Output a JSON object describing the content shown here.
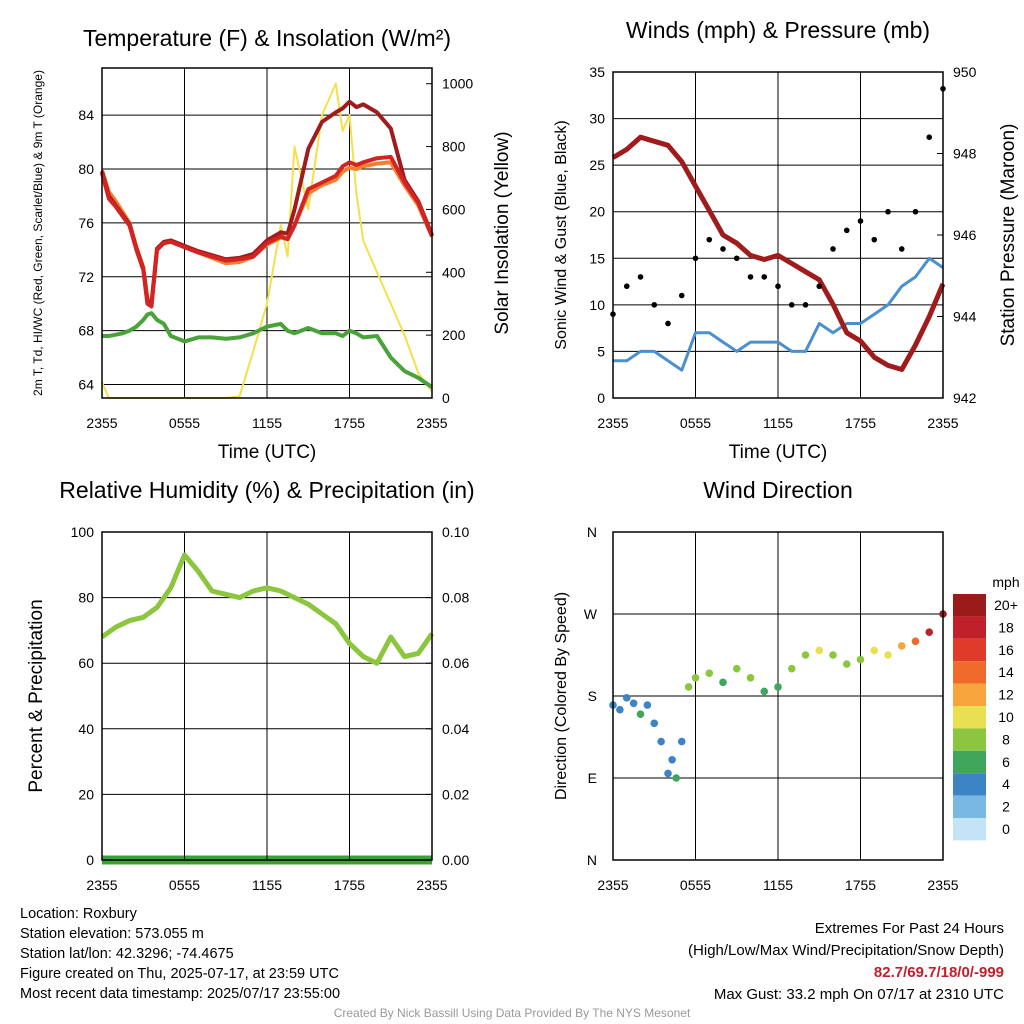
{
  "footer": {
    "location": "Location: Roxbury",
    "elevation": "Station elevation: 573.055 m",
    "latlon": "Station lat/lon: 42.3296; -74.4675",
    "created": "Figure created on Thu, 2025-07-17, at 23:59 UTC",
    "recent": "Most recent data timestamp: 2025/07/17 23:55:00",
    "extremes_title": "Extremes For Past 24 Hours",
    "extremes_sub": "(High/Low/Max Wind/Precipitation/Snow Depth)",
    "extremes_values": "82.7/69.7/18/0/-999",
    "max_gust": "Max Gust: 33.2 mph On 07/17 at 2310 UTC",
    "credit": "Created By Nick Bassill Using Data Provided By The NYS Mesonet"
  },
  "colors": {
    "temp": "#d42323",
    "heat_index": "#d73027",
    "dewpoint": "#4aa23a",
    "temp9m": "#f08030",
    "solar": "#f5e04a",
    "pressure": "#a01c1c",
    "wind": "#4a90d0",
    "gust": "#000000",
    "rh": "#8cc63f",
    "precip": "#3aa03a"
  },
  "chart_data": [
    {
      "type": "line",
      "title": "Temperature (F) & Insolation (W/m²)",
      "xlabel": "Time (UTC)",
      "ylabel": "2m T, Td, HI/WC (Red, Green, Scarlet/Blue) & 9m T (Orange)",
      "ylabel_right": "Solar Insolation (Yellow)",
      "x_ticks": [
        "2355",
        "0555",
        "1155",
        "1755",
        "2355"
      ],
      "ylim": [
        63,
        87.5
      ],
      "y_ticks": [
        "64",
        "68",
        "72",
        "76",
        "80",
        "84"
      ],
      "ylim_right": [
        0,
        1050
      ],
      "y_ticks_right": [
        "0",
        "200",
        "400",
        "600",
        "800",
        "1000"
      ],
      "x_hours": [
        0,
        0.5,
        1,
        1.5,
        2,
        2.5,
        3,
        3.3,
        3.6,
        4,
        4.5,
        5,
        6,
        7,
        8,
        9,
        10,
        11,
        12,
        13,
        13.5,
        14,
        15,
        16,
        17,
        17.5,
        18,
        18.5,
        19,
        20,
        21,
        22,
        23,
        24
      ],
      "series": [
        {
          "values": [
            79.7,
            77.8,
            77.2,
            76.5,
            75.8,
            74.0,
            72.5,
            70.0,
            69.8,
            74.0,
            74.5,
            74.6,
            74.2,
            73.8,
            73.5,
            73.2,
            73.3,
            73.5,
            74.5,
            75.0,
            74.8,
            75.8,
            78.5,
            79.0,
            79.5,
            80.2,
            80.5,
            80.3,
            80.5,
            80.8,
            80.9,
            79.0,
            77.5,
            75.0
          ]
        },
        {
          "values": [
            67.6,
            67.6,
            67.7,
            67.8,
            68.0,
            68.3,
            68.8,
            69.2,
            69.3,
            68.8,
            68.5,
            67.6,
            67.2,
            67.5,
            67.5,
            67.4,
            67.5,
            67.8,
            68.3,
            68.5,
            68.0,
            67.8,
            68.2,
            67.8,
            67.8,
            67.6,
            68.0,
            67.8,
            67.5,
            67.6,
            66.0,
            65.0,
            64.5,
            63.8
          ]
        },
        {
          "values": [
            79.8,
            78.0,
            77.3,
            76.6,
            75.9,
            74.1,
            72.6,
            70.2,
            70.0,
            74.1,
            74.6,
            74.7,
            74.3,
            73.9,
            73.6,
            73.3,
            73.4,
            73.7,
            74.7,
            75.3,
            75.2,
            77.0,
            81.5,
            83.5,
            84.2,
            84.5,
            85.0,
            84.6,
            84.8,
            84.2,
            83.0,
            79.2,
            77.6,
            75.1
          ]
        },
        {
          "values": [
            79.9,
            78.3,
            77.6,
            76.8,
            76.0,
            74.2,
            72.7,
            70.4,
            70.1,
            74.0,
            74.5,
            74.6,
            74.2,
            73.8,
            73.4,
            73.0,
            73.1,
            73.5,
            74.4,
            74.9,
            74.8,
            75.8,
            78.2,
            78.8,
            79.2,
            79.8,
            80.1,
            80.0,
            80.2,
            80.4,
            80.5,
            78.8,
            77.3,
            75.0
          ]
        },
        {
          "values": [
            50,
            0,
            0,
            0,
            0,
            0,
            0,
            0,
            0,
            0,
            0,
            0,
            0,
            0,
            0,
            0,
            5,
            150,
            300,
            550,
            450,
            800,
            600,
            900,
            1000,
            850,
            900,
            650,
            500,
            400,
            300,
            200,
            80,
            20
          ]
        }
      ]
    },
    {
      "type": "line",
      "title": "Winds (mph) & Pressure (mb)",
      "xlabel": "Time (UTC)",
      "ylabel": "Sonic Wind & Gust (Blue, Black)",
      "ylabel_right": "Station Pressure (Maroon)",
      "x_ticks": [
        "2355",
        "0555",
        "1155",
        "1755",
        "2355"
      ],
      "ylim": [
        0,
        35
      ],
      "y_ticks": [
        "0",
        "5",
        "10",
        "15",
        "20",
        "25",
        "30",
        "35"
      ],
      "ylim_right": [
        942,
        950
      ],
      "y_ticks_right": [
        "942",
        "944",
        "946",
        "948",
        "950"
      ],
      "x_hours": [
        0,
        1,
        2,
        3,
        4,
        5,
        6,
        7,
        8,
        9,
        10,
        11,
        12,
        13,
        14,
        15,
        16,
        17,
        18,
        19,
        20,
        21,
        22,
        23,
        24
      ],
      "series": [
        {
          "values": [
            4,
            4,
            5,
            5,
            4,
            3,
            7,
            7,
            6,
            5,
            6,
            6,
            6,
            5,
            5,
            8,
            7,
            8,
            8,
            9,
            10,
            12,
            13,
            15,
            14
          ]
        },
        {
          "values": [
            9,
            12,
            13,
            10,
            8,
            11,
            15,
            17,
            16,
            15,
            13,
            13,
            12,
            10,
            10,
            12,
            16,
            18,
            19,
            17,
            20,
            16,
            20,
            28,
            33.2
          ]
        },
        {
          "values": [
            947.9,
            948.1,
            948.4,
            948.3,
            948.2,
            947.8,
            947.2,
            946.6,
            946.0,
            945.8,
            945.5,
            945.4,
            945.5,
            945.3,
            945.1,
            944.9,
            944.3,
            943.6,
            943.4,
            943.0,
            942.8,
            942.7,
            943.3,
            944.0,
            944.8
          ]
        }
      ]
    },
    {
      "type": "line",
      "title": "Relative Humidity (%) & Precipitation (in)",
      "xlabel": "",
      "ylabel": "Percent & Precipitation",
      "x_ticks": [
        "2355",
        "0555",
        "1155",
        "1755",
        "2355"
      ],
      "ylim": [
        0,
        100
      ],
      "y_ticks": [
        "0",
        "20",
        "40",
        "60",
        "80",
        "100"
      ],
      "ylim_right": [
        0,
        0.1
      ],
      "y_ticks_right": [
        "0.00",
        "0.02",
        "0.04",
        "0.06",
        "0.08",
        "0.10"
      ],
      "x_hours": [
        0,
        1,
        2,
        3,
        4,
        5,
        6,
        7,
        8,
        9,
        10,
        11,
        12,
        13,
        14,
        15,
        16,
        17,
        18,
        19,
        20,
        21,
        22,
        23,
        24
      ],
      "series": [
        {
          "values": [
            68,
            71,
            73,
            74,
            77,
            83,
            93,
            88,
            82,
            81,
            80,
            82,
            83,
            82,
            80,
            78,
            75,
            72,
            66,
            62,
            60,
            68,
            62,
            63,
            69
          ]
        },
        {
          "values": [
            0,
            0,
            0,
            0,
            0,
            0,
            0,
            0,
            0,
            0,
            0,
            0,
            0,
            0,
            0,
            0,
            0,
            0,
            0,
            0,
            0,
            0,
            0,
            0,
            0
          ]
        }
      ]
    },
    {
      "type": "scatter",
      "title": "Wind Direction",
      "ylabel": "Direction (Colored By Speed)",
      "x_ticks": [
        "2355",
        "0555",
        "1155",
        "1755",
        "2355"
      ],
      "y_ticks": [
        "N",
        "E",
        "S",
        "W",
        "N"
      ],
      "ylim": [
        0,
        360
      ],
      "legend_title": "mph",
      "legend_labels": [
        "20+",
        "18",
        "16",
        "14",
        "12",
        "10",
        "8",
        "6",
        "4",
        "2",
        "0"
      ],
      "legend_colors": [
        "#9b1b1b",
        "#c0202a",
        "#e03a2a",
        "#f06a2c",
        "#f7a43c",
        "#e8e050",
        "#8cc63f",
        "#3fa65c",
        "#3d84c4",
        "#7ab8e4",
        "#c2e4f6"
      ],
      "x_hours": [
        0,
        0.5,
        1,
        1.5,
        2,
        2.5,
        3,
        3.5,
        4,
        4.3,
        4.6,
        5,
        5.5,
        6,
        7,
        8,
        9,
        10,
        11,
        12,
        13,
        14,
        15,
        16,
        17,
        18,
        19,
        20,
        21,
        22,
        23,
        24
      ],
      "values": [
        170,
        165,
        178,
        172,
        160,
        170,
        150,
        130,
        95,
        110,
        90,
        130,
        190,
        200,
        205,
        195,
        210,
        200,
        185,
        190,
        210,
        225,
        230,
        225,
        215,
        220,
        230,
        225,
        235,
        240,
        250,
        270
      ],
      "speeds": [
        4,
        3,
        4,
        4,
        5,
        4,
        3,
        4,
        4,
        3,
        5,
        4,
        7,
        8,
        7,
        6,
        8,
        7,
        5,
        6,
        7,
        8,
        9,
        8,
        7,
        8,
        10,
        9,
        12,
        14,
        18,
        20
      ]
    }
  ]
}
